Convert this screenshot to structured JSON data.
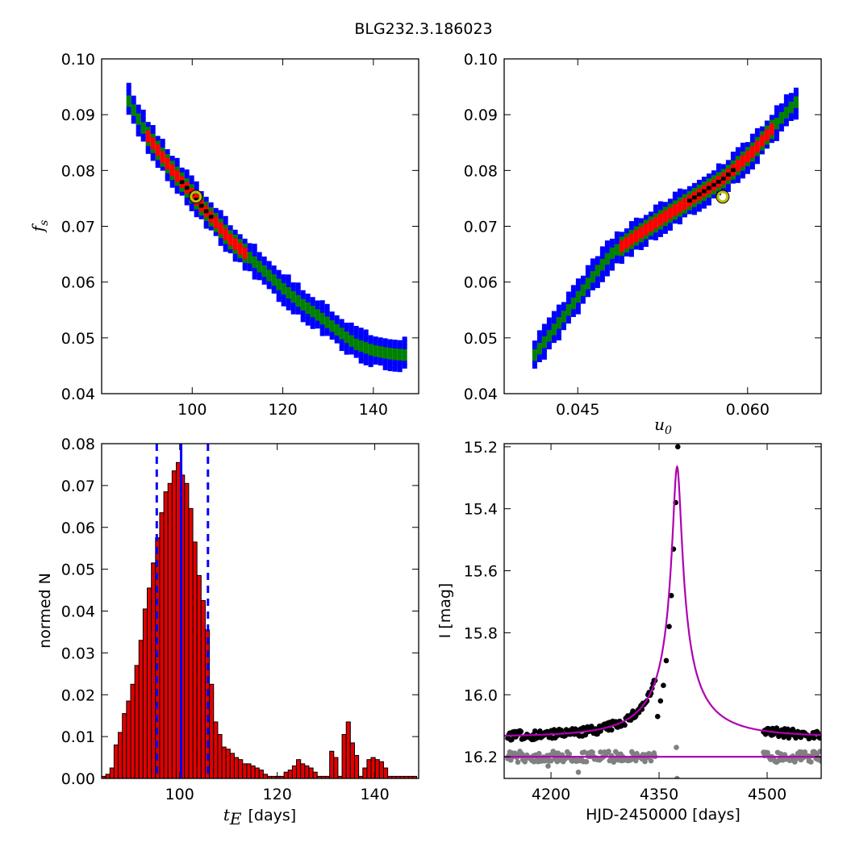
{
  "figure": {
    "title": "BLG232.3.186023"
  },
  "colors": {
    "sigma3": "#0000ff",
    "sigma2": "#008000",
    "sigma1": "#ff0000",
    "best": "#000000",
    "marker_edge": "#bfbf00",
    "bars": "#e00000",
    "vline": "#0000ff",
    "model": "#b000b0",
    "data_main": "#000000",
    "data_ref": "#808080"
  },
  "chart_data": [
    {
      "id": "fs_vs_tE",
      "type": "heatmap",
      "ylabel": "f",
      "ylabel_sub": "s",
      "xlim": [
        80,
        150
      ],
      "ylim": [
        0.04,
        0.1
      ],
      "xticks": [
        "100",
        "120",
        "140"
      ],
      "xtick_values": [
        100,
        120,
        140
      ],
      "yticks": [
        "0.04",
        "0.05",
        "0.06",
        "0.07",
        "0.08",
        "0.09",
        "0.10"
      ],
      "ytick_values": [
        0.04,
        0.05,
        0.06,
        0.07,
        0.08,
        0.09,
        0.1
      ],
      "band": [
        [
          86,
          0.0925
        ],
        [
          88,
          0.0895
        ],
        [
          90,
          0.0865
        ],
        [
          93,
          0.083
        ],
        [
          96,
          0.0797
        ],
        [
          99,
          0.0768
        ],
        [
          102,
          0.0738
        ],
        [
          105,
          0.071
        ],
        [
          108,
          0.068
        ],
        [
          112,
          0.065
        ],
        [
          116,
          0.062
        ],
        [
          120,
          0.059
        ],
        [
          124,
          0.0563
        ],
        [
          128,
          0.054
        ],
        [
          132,
          0.0515
        ],
        [
          136,
          0.049
        ],
        [
          140,
          0.0478
        ],
        [
          144,
          0.0472
        ],
        [
          147,
          0.047
        ]
      ],
      "red_range": [
        90,
        112
      ],
      "best_range": [
        97,
        105
      ],
      "best_fit": {
        "x": 100.8,
        "y": 0.0753
      }
    },
    {
      "id": "fs_vs_u0",
      "type": "heatmap",
      "xlabel": "u",
      "xlabel_sub": "0",
      "xlim": [
        0.0385,
        0.0665
      ],
      "ylim": [
        0.04,
        0.1
      ],
      "xticks": [
        "0.045",
        "0.060"
      ],
      "xtick_values": [
        0.045,
        0.06
      ],
      "yticks": [
        "0.04",
        "0.05",
        "0.06",
        "0.07",
        "0.08",
        "0.09",
        "0.10"
      ],
      "ytick_values": [
        0.04,
        0.05,
        0.06,
        0.07,
        0.08,
        0.09,
        0.1
      ],
      "band": [
        [
          0.0412,
          0.047
        ],
        [
          0.0425,
          0.0505
        ],
        [
          0.0438,
          0.054
        ],
        [
          0.045,
          0.0573
        ],
        [
          0.0465,
          0.0615
        ],
        [
          0.048,
          0.0652
        ],
        [
          0.0505,
          0.0688
        ],
        [
          0.053,
          0.0722
        ],
        [
          0.0555,
          0.0755
        ],
        [
          0.058,
          0.0788
        ],
        [
          0.0605,
          0.0835
        ],
        [
          0.063,
          0.0895
        ],
        [
          0.0645,
          0.0928
        ]
      ],
      "red_range": [
        0.0485,
        0.0625
      ],
      "best_range": [
        0.0545,
        0.059
      ],
      "best_fit": {
        "x": 0.0578,
        "y": 0.0753
      }
    },
    {
      "id": "tE_histogram",
      "type": "bar",
      "xlabel_prefix": "t",
      "xlabel_sub": "E",
      "xlabel_suffix": "[days]",
      "ylabel": "normed N",
      "xlim": [
        84,
        149
      ],
      "ylim": [
        0,
        0.08
      ],
      "xticks": [
        "100",
        "120",
        "140"
      ],
      "xtick_values": [
        100,
        120,
        140
      ],
      "yticks": [
        "0.00",
        "0.01",
        "0.02",
        "0.03",
        "0.04",
        "0.05",
        "0.06",
        "0.07",
        "0.08"
      ],
      "ytick_values": [
        0,
        0.01,
        0.02,
        0.03,
        0.04,
        0.05,
        0.06,
        0.07,
        0.08
      ],
      "bin_start": 84,
      "bin_width": 0.85,
      "values": [
        0.0005,
        0.001,
        0.0025,
        0.008,
        0.011,
        0.0155,
        0.0185,
        0.0225,
        0.027,
        0.033,
        0.0405,
        0.0455,
        0.0515,
        0.0575,
        0.0635,
        0.0685,
        0.0705,
        0.0735,
        0.0755,
        0.0725,
        0.0705,
        0.0645,
        0.0565,
        0.0485,
        0.0425,
        0.0355,
        0.0225,
        0.0135,
        0.0105,
        0.0075,
        0.007,
        0.006,
        0.005,
        0.0045,
        0.0035,
        0.0035,
        0.003,
        0.0025,
        0.002,
        0.001,
        0.0005,
        0.0005,
        0.0005,
        0.0005,
        0.0015,
        0.002,
        0.003,
        0.0045,
        0.0035,
        0.003,
        0.0025,
        0.0015,
        0.0005,
        0.0005,
        0.0005,
        0.0065,
        0.005,
        0.0005,
        0.0105,
        0.0135,
        0.0085,
        0.0055,
        0.0005,
        0.0025,
        0.0045,
        0.005,
        0.0045,
        0.004,
        0.0025,
        0.0005,
        0.0005,
        0.0005,
        0.0005,
        0.0005,
        0.0005,
        0.0005
      ],
      "median": 100.3,
      "lower": 95.3,
      "upper": 105.8
    },
    {
      "id": "light_curve",
      "type": "scatter",
      "xlabel": "HJD-2450000 [days]",
      "ylabel": "I [mag]",
      "xlim": [
        4135,
        4575
      ],
      "ylim": [
        16.27,
        15.19
      ],
      "xticks": [
        "4200",
        "4350",
        "4500"
      ],
      "xtick_values": [
        4200,
        4350,
        4500
      ],
      "yticks": [
        "15.2",
        "15.4",
        "15.6",
        "15.8",
        "16.0",
        "16.2"
      ],
      "ytick_values": [
        15.2,
        15.4,
        15.6,
        15.8,
        16.0,
        16.2
      ],
      "model": {
        "t0": 4375,
        "tE": 100.8,
        "u0": 0.0578,
        "fs": 0.0753,
        "base_mag": 16.135,
        "ref_mag": 16.2
      },
      "segments": [
        [
          4140,
          4345
        ],
        [
          4495,
          4575
        ]
      ],
      "peak_points": [
        [
          4348,
          16.07
        ],
        [
          4352,
          16.02
        ],
        [
          4356,
          15.97
        ],
        [
          4360,
          15.89
        ],
        [
          4364,
          15.78
        ],
        [
          4367,
          15.68
        ],
        [
          4370,
          15.53
        ],
        [
          4373,
          15.38
        ],
        [
          4376,
          15.2
        ]
      ],
      "ref_outliers": [
        [
          4238,
          16.25
        ],
        [
          4374,
          16.17
        ],
        [
          4375,
          16.27
        ],
        [
          4196,
          16.23
        ]
      ]
    }
  ]
}
